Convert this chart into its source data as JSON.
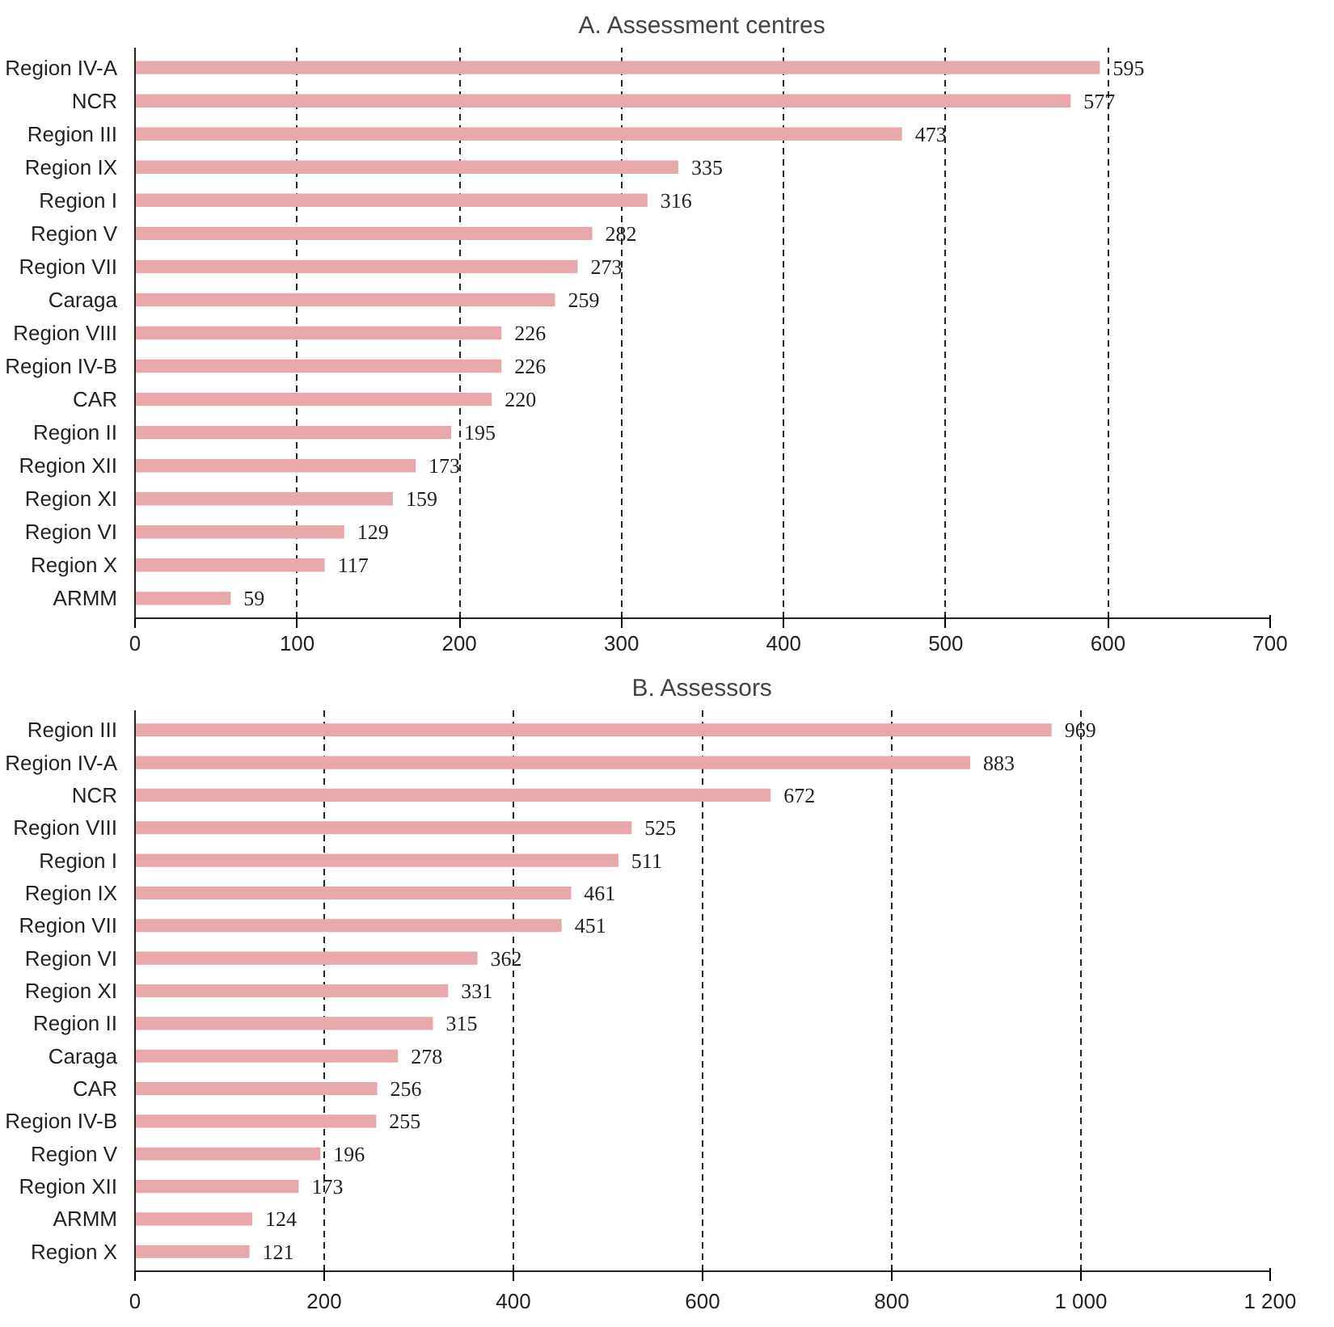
{
  "chart_data": [
    {
      "type": "bar",
      "orientation": "horizontal",
      "title": "A. Assessment centres",
      "categories": [
        "Region IV-A",
        "NCR",
        "Region III",
        "Region IX",
        "Region I",
        "Region V",
        "Region VII",
        "Caraga",
        "Region VIII",
        "Region IV-B",
        "CAR",
        "Region II",
        "Region XII",
        "Region XI",
        "Region VI",
        "Region X",
        "ARMM"
      ],
      "values": [
        595,
        577,
        473,
        335,
        316,
        282,
        273,
        259,
        226,
        226,
        220,
        195,
        173,
        159,
        129,
        117,
        59
      ],
      "color": "#e8a7ab",
      "xlim": [
        0,
        700
      ],
      "xticks": [
        0,
        100,
        200,
        300,
        400,
        500,
        600,
        700
      ],
      "grid": "x",
      "data_labels": true
    },
    {
      "type": "bar",
      "orientation": "horizontal",
      "title": "B. Assessors",
      "categories": [
        "Region III",
        "Region IV-A",
        "NCR",
        "Region VIII",
        "Region I",
        "Region IX",
        "Region VII",
        "Region VI",
        "Region XI",
        "Region II",
        "Caraga",
        "CAR",
        "Region IV-B",
        "Region V",
        "Region XII",
        "ARMM",
        "Region X"
      ],
      "values": [
        969,
        883,
        672,
        525,
        511,
        461,
        451,
        362,
        331,
        315,
        278,
        256,
        255,
        196,
        173,
        124,
        121
      ],
      "color": "#e8a7ab",
      "xlim": [
        0,
        1200
      ],
      "xticks": [
        0,
        200,
        400,
        600,
        800,
        {
          "value": 1000,
          "label": "1 000"
        },
        {
          "value": 1200,
          "label": "1 200"
        }
      ],
      "grid": "x",
      "data_labels": true
    }
  ]
}
